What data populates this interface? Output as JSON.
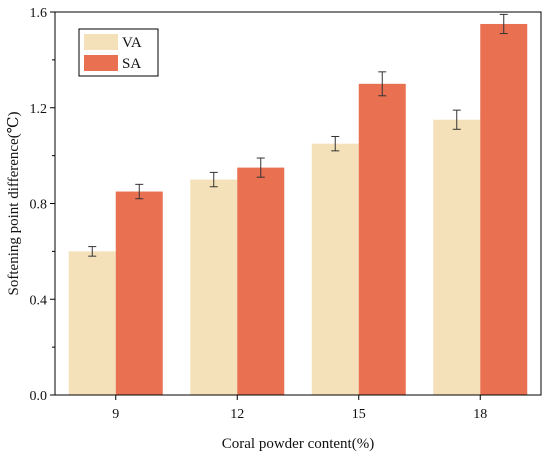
{
  "chart_data": {
    "type": "bar",
    "title": "",
    "xlabel": "Coral powder content(%)",
    "ylabel": "Softening point difference(℃)",
    "categories": [
      "9",
      "12",
      "15",
      "18"
    ],
    "ylim": [
      0.0,
      1.6
    ],
    "yticks": [
      "0.0",
      "0.4",
      "0.8",
      "1.2",
      "1.6"
    ],
    "grid": false,
    "legend": {
      "placement": "top-left",
      "boxed": true
    },
    "series": [
      {
        "name": "VA",
        "color": "#f5e1b9",
        "values": [
          0.6,
          0.9,
          1.05,
          1.15
        ],
        "errors": [
          0.02,
          0.03,
          0.03,
          0.04
        ]
      },
      {
        "name": "SA",
        "color": "#e97051",
        "values": [
          0.85,
          0.95,
          1.3,
          1.55
        ],
        "errors": [
          0.03,
          0.04,
          0.05,
          0.04
        ]
      }
    ]
  }
}
